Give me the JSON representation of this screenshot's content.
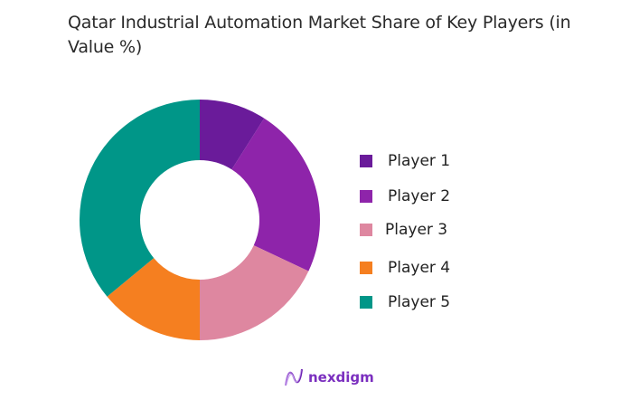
{
  "title": "Qatar Industrial Automation Market Share of Key Players (in Value %)",
  "chart_data": {
    "type": "pie",
    "subtype": "donut",
    "title": "Qatar Industrial Automation Market Share of Key Players (in Value %)",
    "categories": [
      "Player 1",
      "Player 2",
      "Player 3",
      "Player 4",
      "Player 5"
    ],
    "values": [
      9,
      23,
      18,
      14,
      36
    ],
    "colors": [
      "#6a1b9a",
      "#8e24aa",
      "#de87a0",
      "#f57f20",
      "#009688"
    ],
    "start_angle_deg": 0,
    "direction": "clockwise",
    "legend_position": "right"
  },
  "legend": [
    {
      "label": "Player 1",
      "color": "#6a1b9a"
    },
    {
      "label": "Player 2",
      "color": "#8e24aa"
    },
    {
      "label": "Player 3",
      "color": "#de87a0"
    },
    {
      "label": "Player 4",
      "color": "#f57f20"
    },
    {
      "label": "Player 5",
      "color": "#009688"
    }
  ],
  "logo": {
    "text": "nexdigm"
  }
}
